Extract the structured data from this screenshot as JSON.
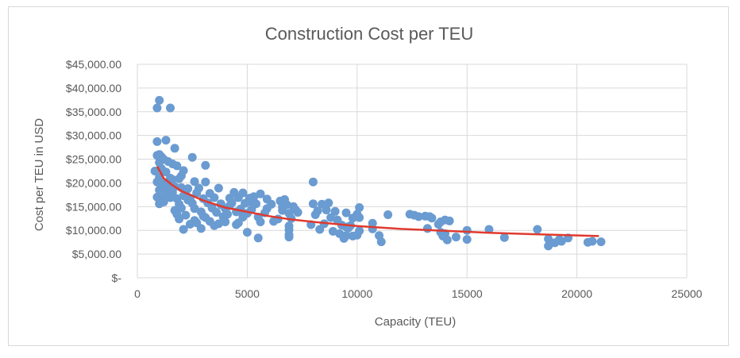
{
  "chart_data": {
    "type": "scatter",
    "title": "Construction Cost per TEU",
    "xlabel": "Capacity (TEU)",
    "ylabel": "Cost per TEU  in USD",
    "xlim": [
      0,
      25000
    ],
    "ylim": [
      0,
      45000
    ],
    "x_ticks": [
      "0",
      "5000",
      "10000",
      "15000",
      "20000",
      "25000"
    ],
    "y_ticks": [
      "$-",
      "$5,000.00",
      "$10,000.00",
      "$15,000.00",
      "$20,000.00",
      "$25,000.00",
      "$30,000.00",
      "$35,000.00",
      "$40,000.00",
      "$45,000.00"
    ],
    "grid": true,
    "legend": "none",
    "point_color": "#6a9bd1",
    "trend_color": "#e03a2e",
    "trendline": {
      "type": "power",
      "points": [
        [
          900,
          23500
        ],
        [
          1200,
          21000
        ],
        [
          1600,
          19500
        ],
        [
          2000,
          18300
        ],
        [
          3000,
          16300
        ],
        [
          4000,
          14800
        ],
        [
          5000,
          13900
        ],
        [
          6000,
          13000
        ],
        [
          7000,
          12300
        ],
        [
          8000,
          11800
        ],
        [
          10000,
          10900
        ],
        [
          12000,
          10300
        ],
        [
          14000,
          9900
        ],
        [
          16000,
          9500
        ],
        [
          18000,
          9200
        ],
        [
          21000,
          8800
        ]
      ]
    },
    "points": [
      [
        1000,
        37400
      ],
      [
        900,
        35800
      ],
      [
        1500,
        35800
      ],
      [
        1300,
        29000
      ],
      [
        900,
        28700
      ],
      [
        1700,
        27300
      ],
      [
        900,
        25800
      ],
      [
        1000,
        26000
      ],
      [
        1100,
        25500
      ],
      [
        1200,
        25000
      ],
      [
        1400,
        24500
      ],
      [
        2500,
        25400
      ],
      [
        1600,
        24000
      ],
      [
        1800,
        23600
      ],
      [
        3100,
        23700
      ],
      [
        800,
        22500
      ],
      [
        1100,
        23000
      ],
      [
        1300,
        22300
      ],
      [
        2100,
        22600
      ],
      [
        1000,
        21200
      ],
      [
        1500,
        21000
      ],
      [
        1900,
        20900
      ],
      [
        2600,
        20300
      ],
      [
        3100,
        20200
      ],
      [
        900,
        20200
      ],
      [
        1200,
        19800
      ],
      [
        1400,
        19500
      ],
      [
        1700,
        19200
      ],
      [
        2000,
        19000
      ],
      [
        2300,
        18800
      ],
      [
        2800,
        18900
      ],
      [
        3700,
        18900
      ],
      [
        1000,
        18500
      ],
      [
        1300,
        18200
      ],
      [
        1600,
        18000
      ],
      [
        2200,
        18100
      ],
      [
        2700,
        17900
      ],
      [
        3300,
        17800
      ],
      [
        4400,
        18000
      ],
      [
        4800,
        17900
      ],
      [
        5600,
        17700
      ],
      [
        900,
        17000
      ],
      [
        1100,
        16800
      ],
      [
        1500,
        16900
      ],
      [
        1800,
        16700
      ],
      [
        2400,
        16800
      ],
      [
        3000,
        16700
      ],
      [
        3500,
        16900
      ],
      [
        4200,
        16800
      ],
      [
        4600,
        16900
      ],
      [
        5100,
        16800
      ],
      [
        5900,
        16600
      ],
      [
        6700,
        16500
      ],
      [
        6500,
        16200
      ],
      [
        1000,
        15600
      ],
      [
        1900,
        15500
      ],
      [
        2500,
        15700
      ],
      [
        3200,
        15800
      ],
      [
        3800,
        15600
      ],
      [
        4300,
        15800
      ],
      [
        4900,
        15700
      ],
      [
        5400,
        15600
      ],
      [
        6100,
        15500
      ],
      [
        6800,
        15400
      ],
      [
        7100,
        15000
      ],
      [
        8000,
        15600
      ],
      [
        8400,
        15500
      ],
      [
        8700,
        15800
      ],
      [
        10100,
        14800
      ],
      [
        2000,
        14700
      ],
      [
        2600,
        14600
      ],
      [
        3400,
        14700
      ],
      [
        4000,
        14600
      ],
      [
        4700,
        14500
      ],
      [
        5200,
        14400
      ],
      [
        5900,
        14600
      ],
      [
        6600,
        14200
      ],
      [
        7200,
        14300
      ],
      [
        8200,
        14100
      ],
      [
        8600,
        14300
      ],
      [
        9000,
        14000
      ],
      [
        1700,
        14200
      ],
      [
        2900,
        13900
      ],
      [
        3600,
        13800
      ],
      [
        4500,
        13900
      ],
      [
        5000,
        13600
      ],
      [
        5800,
        13700
      ],
      [
        6900,
        13600
      ],
      [
        8100,
        13300
      ],
      [
        9500,
        13700
      ],
      [
        10000,
        13400
      ],
      [
        11400,
        13300
      ],
      [
        12400,
        13400
      ],
      [
        12600,
        13200
      ],
      [
        13100,
        13000
      ],
      [
        13300,
        12900
      ],
      [
        2200,
        13200
      ],
      [
        3000,
        13000
      ],
      [
        3900,
        12900
      ],
      [
        4800,
        12800
      ],
      [
        5500,
        12800
      ],
      [
        6400,
        12400
      ],
      [
        7000,
        12500
      ],
      [
        8800,
        12700
      ],
      [
        9800,
        12600
      ],
      [
        10100,
        12700
      ],
      [
        13400,
        12600
      ],
      [
        14000,
        12200
      ],
      [
        13800,
        11800
      ],
      [
        1900,
        12400
      ],
      [
        2600,
        12100
      ],
      [
        3300,
        11900
      ],
      [
        4000,
        11800
      ],
      [
        4600,
        11600
      ],
      [
        5600,
        11800
      ],
      [
        6200,
        11900
      ],
      [
        7900,
        11200
      ],
      [
        8500,
        11400
      ],
      [
        9300,
        11100
      ],
      [
        9700,
        11000
      ],
      [
        10700,
        11500
      ],
      [
        2400,
        11300
      ],
      [
        3500,
        11000
      ],
      [
        4500,
        11200
      ],
      [
        6900,
        10900
      ],
      [
        8300,
        10200
      ],
      [
        9600,
        10500
      ],
      [
        10700,
        10300
      ],
      [
        13200,
        10400
      ],
      [
        2100,
        10200
      ],
      [
        2900,
        10400
      ],
      [
        6900,
        10100
      ],
      [
        8900,
        9800
      ],
      [
        10100,
        9900
      ],
      [
        13800,
        9600
      ],
      [
        14000,
        9300
      ],
      [
        15000,
        10000
      ],
      [
        16000,
        10200
      ],
      [
        18200,
        10200
      ],
      [
        5000,
        9600
      ],
      [
        6900,
        9100
      ],
      [
        9200,
        9300
      ],
      [
        9800,
        8800
      ],
      [
        11000,
        8900
      ],
      [
        13900,
        8800
      ],
      [
        14500,
        8600
      ],
      [
        16700,
        8500
      ],
      [
        18700,
        8200
      ],
      [
        19600,
        8400
      ],
      [
        5500,
        8400
      ],
      [
        6900,
        8600
      ],
      [
        9400,
        8300
      ],
      [
        11100,
        7600
      ],
      [
        14100,
        8000
      ],
      [
        15000,
        8100
      ],
      [
        19200,
        8100
      ],
      [
        19000,
        7400
      ],
      [
        20500,
        7500
      ],
      [
        20700,
        7700
      ],
      [
        21100,
        7600
      ],
      [
        18700,
        6700
      ],
      [
        9500,
        8900
      ],
      [
        10000,
        9000
      ],
      [
        13900,
        9200
      ],
      [
        19300,
        7700
      ],
      [
        4200,
        15200
      ],
      [
        3800,
        15400
      ],
      [
        2300,
        16400
      ],
      [
        1200,
        16000
      ],
      [
        1400,
        17500
      ],
      [
        2100,
        17300
      ],
      [
        5300,
        17100
      ],
      [
        4100,
        13400
      ],
      [
        3100,
        12700
      ],
      [
        2700,
        11600
      ],
      [
        4700,
        14100
      ],
      [
        5200,
        15900
      ],
      [
        6600,
        14900
      ],
      [
        7300,
        13800
      ],
      [
        9100,
        12200
      ],
      [
        8000,
        20200
      ],
      [
        9500,
        10700
      ],
      [
        3700,
        11400
      ],
      [
        1600,
        20700
      ],
      [
        2000,
        21500
      ],
      [
        1000,
        24300
      ],
      [
        1800,
        13400
      ],
      [
        12800,
        12900
      ],
      [
        13700,
        11300
      ],
      [
        14200,
        12000
      ]
    ]
  }
}
